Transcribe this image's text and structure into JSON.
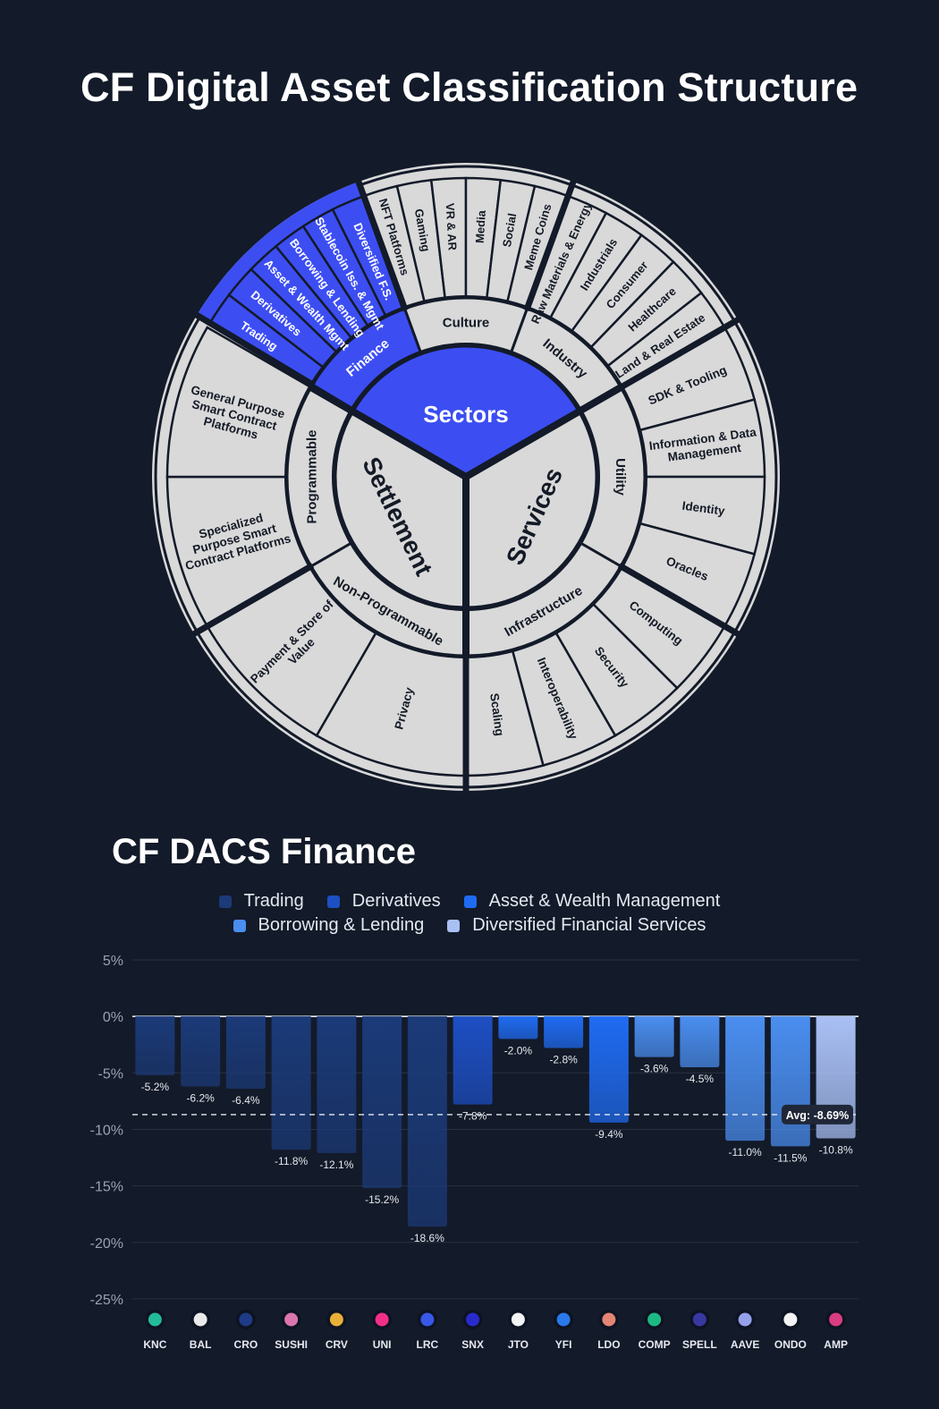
{
  "title": "CF Digital Asset Classification Structure",
  "wheel": {
    "center_label": "Sectors",
    "colors": {
      "background": "#131a29",
      "segment": "#d9d9d9",
      "highlight": "#3c4ef2",
      "text_dark": "#141a26",
      "text_light": "#ffffff"
    },
    "core": [
      {
        "id": "sectors",
        "label": "Sectors"
      },
      {
        "id": "services",
        "label": "Services"
      },
      {
        "id": "settlement",
        "label": "Settlement"
      }
    ],
    "groups": [
      {
        "label": "Finance",
        "highlight": true,
        "items": [
          "Trading",
          "Derivatives",
          "Asset & Wealth Mgmt",
          "Borrowing & Lending",
          "Stablecoin Iss. & Mgmt",
          "Diversified F.S."
        ]
      },
      {
        "label": "Culture",
        "items": [
          "NFT Platforms",
          "Gaming",
          "VR & AR",
          "Media",
          "Social",
          "Meme Coins"
        ]
      },
      {
        "label": "Industry",
        "items": [
          "Raw Materials & Energy",
          "Industrials",
          "Consumer",
          "Healthcare",
          "Land & Real Estate"
        ]
      },
      {
        "label": "Utility",
        "items": [
          "SDK & Tooling",
          "Information & Data Management",
          "Identity",
          "Oracles"
        ]
      },
      {
        "label": "Infrastructure",
        "items": [
          "Computing",
          "Security",
          "Interoperability",
          "Scaling"
        ]
      },
      {
        "label": "Non-Programmable",
        "items": [
          "Privacy",
          "Payment & Store of Value"
        ]
      },
      {
        "label": "Programmable",
        "items": [
          "Specialized Purpose Smart Contract Platforms",
          "General Purpose Smart Contract Platforms"
        ]
      }
    ]
  },
  "chart_data": {
    "type": "bar",
    "title": "CF DACS Finance",
    "legend": [
      {
        "name": "Trading",
        "color": "#1b3a78"
      },
      {
        "name": "Derivatives",
        "color": "#1d4fc4"
      },
      {
        "name": "Asset & Wealth Management",
        "color": "#1f6bf2"
      },
      {
        "name": "Borrowing & Lending",
        "color": "#4a8ef0"
      },
      {
        "name": "Diversified Financial Services",
        "color": "#a9c0f5"
      }
    ],
    "categories": [
      "KNC",
      "BAL",
      "CRO",
      "SUSHI",
      "CRV",
      "UNI",
      "LRC",
      "SNX",
      "JTO",
      "YFI",
      "LDO",
      "COMP",
      "SPELL",
      "AAVE",
      "ONDO",
      "AMP"
    ],
    "values": [
      -5.2,
      -6.2,
      -6.4,
      -11.8,
      -12.1,
      -15.2,
      -18.6,
      -7.8,
      -2.0,
      -2.8,
      -9.4,
      -3.6,
      -4.5,
      -11.0,
      -11.5,
      -10.8
    ],
    "value_labels": [
      "-5.2%",
      "-6.2%",
      "-6.4%",
      "-11.8%",
      "-12.1%",
      "-15.2%",
      "-18.6%",
      "-7.8%",
      "-2.0%",
      "-2.8%",
      "-9.4%",
      "-3.6%",
      "-4.5%",
      "-11.0%",
      "-11.5%",
      "-10.8%"
    ],
    "series_index": [
      0,
      0,
      0,
      0,
      0,
      0,
      0,
      1,
      2,
      2,
      2,
      3,
      3,
      3,
      3,
      4
    ],
    "ylim": [
      -25,
      5
    ],
    "yticks": [
      5,
      0,
      -5,
      -10,
      -15,
      -20,
      -25
    ],
    "ytick_labels": [
      "5%",
      "0%",
      "-5%",
      "-10%",
      "-15%",
      "-20%",
      "-25%"
    ],
    "average": -8.69,
    "average_label": "Avg: -8.69%",
    "icon_colors": [
      "#25c3a0",
      "#f4f4f4",
      "#1f3d8c",
      "#e67ab8",
      "#f4b63a",
      "#ff2f8e",
      "#3c5cf2",
      "#2b2bd6",
      "#ffffff",
      "#2b7ef4",
      "#f08a7a",
      "#1fc288",
      "#3a3aa8",
      "#9ba8f7",
      "#ffffff",
      "#e53e86"
    ]
  }
}
